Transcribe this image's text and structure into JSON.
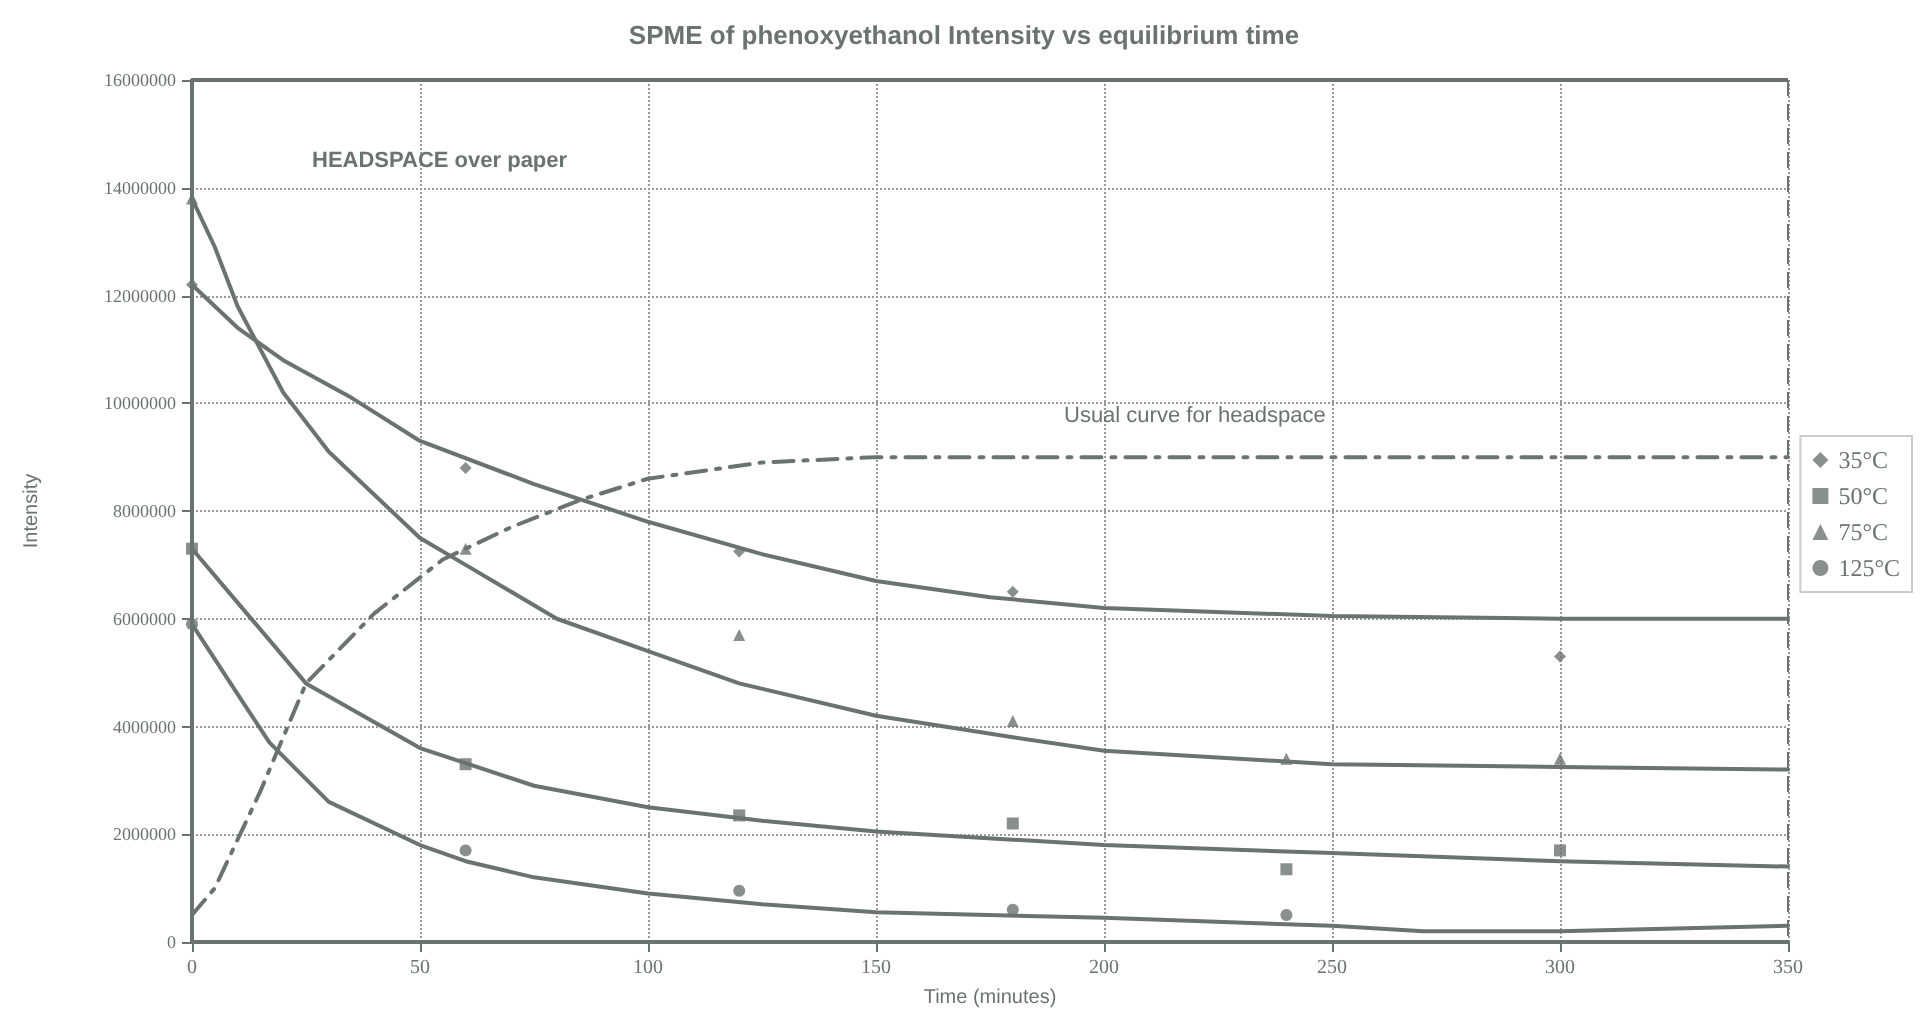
{
  "chart_data": {
    "type": "scatter",
    "title": "SPME of phenoxyethanol Intensity vs equilibrium time",
    "xlabel": "Time (minutes)",
    "ylabel": "Intensity",
    "annotations": [
      "HEADSPACE over paper",
      {
        "text": "Usual curve for headspace",
        "x": 200,
        "y": 9000000
      }
    ],
    "xlim": [
      0,
      350
    ],
    "xticks": [
      0,
      50,
      100,
      150,
      200,
      250,
      300,
      350
    ],
    "ylim": [
      0,
      16000000
    ],
    "yticks": [
      0,
      2000000,
      4000000,
      6000000,
      8000000,
      10000000,
      12000000,
      14000000,
      16000000
    ],
    "grid": true,
    "legend": "right",
    "series": [
      {
        "name": "35°C",
        "type": "scatter",
        "marker": "diamond",
        "color": "#6b7370",
        "x": [
          0,
          60,
          120,
          180,
          300
        ],
        "values": [
          12200000,
          8800000,
          7250000,
          6500000,
          5300000
        ]
      },
      {
        "name": "50°C",
        "type": "scatter",
        "marker": "square",
        "color": "#6b7370",
        "x": [
          0,
          60,
          120,
          180,
          240,
          300
        ],
        "values": [
          7300000,
          3300000,
          2350000,
          2200000,
          1350000,
          1700000
        ]
      },
      {
        "name": "75°C",
        "type": "scatter",
        "marker": "triangle",
        "color": "#6b7370",
        "x": [
          0,
          60,
          120,
          180,
          240,
          300
        ],
        "values": [
          13800000,
          7300000,
          5700000,
          4100000,
          3400000,
          3400000
        ]
      },
      {
        "name": "125°C",
        "type": "scatter",
        "marker": "circle",
        "color": "#6b7370",
        "x": [
          0,
          60,
          120,
          180,
          240
        ],
        "values": [
          5900000,
          1700000,
          950000,
          600000,
          500000
        ]
      },
      {
        "type": "line",
        "line_style": "solid",
        "color": "#6b7370",
        "x": [
          0,
          10,
          20,
          35,
          50,
          75,
          100,
          125,
          150,
          175,
          200,
          250,
          300,
          350
        ],
        "values": [
          12200000,
          11400000,
          10800000,
          10100000,
          9300000,
          8500000,
          7800000,
          7200000,
          6700000,
          6400000,
          6200000,
          6050000,
          6000000,
          6000000
        ]
      },
      {
        "type": "line",
        "line_style": "solid",
        "color": "#6b7370",
        "x": [
          0,
          5,
          10,
          20,
          30,
          50,
          60,
          80,
          100,
          120,
          150,
          180,
          200,
          250,
          300,
          350
        ],
        "values": [
          13800000,
          12900000,
          11800000,
          10200000,
          9100000,
          7500000,
          7000000,
          6000000,
          5400000,
          4800000,
          4200000,
          3800000,
          3550000,
          3300000,
          3250000,
          3200000
        ]
      },
      {
        "type": "line",
        "line_style": "solid",
        "color": "#6b7370",
        "x": [
          0,
          10,
          25,
          50,
          75,
          100,
          125,
          150,
          180,
          200,
          250,
          300,
          350
        ],
        "values": [
          7300000,
          6300000,
          4800000,
          3600000,
          2900000,
          2500000,
          2250000,
          2050000,
          1900000,
          1800000,
          1650000,
          1500000,
          1400000
        ]
      },
      {
        "type": "line",
        "line_style": "solid",
        "color": "#6b7370",
        "x": [
          0,
          10,
          17,
          30,
          50,
          60,
          75,
          100,
          125,
          150,
          200,
          250,
          270,
          300,
          350
        ],
        "values": [
          5900000,
          4600000,
          3700000,
          2600000,
          1800000,
          1500000,
          1200000,
          900000,
          700000,
          550000,
          450000,
          300000,
          200000,
          200000,
          300000
        ]
      },
      {
        "type": "line",
        "line_style": "dashed",
        "color": "#6b7370",
        "x": [
          0,
          5,
          15,
          25,
          40,
          55,
          70,
          85,
          100,
          125,
          150,
          200,
          350
        ],
        "values": [
          500000,
          1000000,
          2800000,
          4800000,
          6100000,
          7100000,
          7700000,
          8200000,
          8600000,
          8900000,
          9000000,
          9000000,
          9000000
        ]
      }
    ]
  }
}
